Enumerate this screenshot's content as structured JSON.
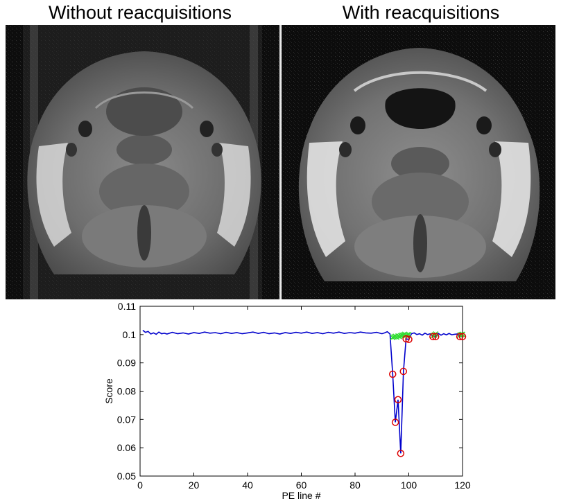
{
  "panels": {
    "left_title": "Without reacquisitions",
    "right_title": "With reacquisitions"
  },
  "chart_data": {
    "type": "line",
    "title": "",
    "xlabel": "PE line #",
    "ylabel": "Score",
    "xlim": [
      0,
      120
    ],
    "ylim": [
      0.05,
      0.11
    ],
    "xticks": [
      0,
      20,
      40,
      60,
      80,
      100,
      120
    ],
    "yticks": [
      0.05,
      0.06,
      0.07,
      0.08,
      0.09,
      0.1,
      0.11
    ],
    "ytick_labels": [
      "0.05",
      "0.06",
      "0.07",
      "0.08",
      "0.09",
      "0.1",
      "0.11"
    ],
    "grid": false,
    "series": [
      {
        "style": "line",
        "color": "#0000cc",
        "x": [
          1,
          2,
          3,
          4,
          5,
          6,
          7,
          8,
          9,
          10,
          12,
          14,
          16,
          18,
          20,
          22,
          24,
          26,
          28,
          30,
          32,
          34,
          36,
          38,
          40,
          42,
          44,
          46,
          48,
          50,
          52,
          54,
          56,
          58,
          60,
          62,
          64,
          66,
          68,
          70,
          72,
          74,
          76,
          78,
          80,
          82,
          84,
          86,
          88,
          90,
          91,
          92,
          93,
          94,
          95,
          96,
          97,
          98,
          99,
          100,
          101,
          102,
          103,
          104,
          105,
          106,
          107,
          108,
          109,
          110,
          111,
          112,
          113,
          114,
          115,
          116,
          117,
          118,
          119,
          120
        ],
        "y": [
          0.1015,
          0.1008,
          0.1011,
          0.1002,
          0.1006,
          0.1001,
          0.1009,
          0.1003,
          0.1005,
          0.1002,
          0.1008,
          0.1003,
          0.1006,
          0.1002,
          0.1007,
          0.1004,
          0.1009,
          0.1005,
          0.1007,
          0.1003,
          0.1008,
          0.1004,
          0.1007,
          0.1003,
          0.1006,
          0.1009,
          0.1004,
          0.1008,
          0.1003,
          0.1006,
          0.1002,
          0.1007,
          0.1004,
          0.1008,
          0.1005,
          0.1009,
          0.1004,
          0.1007,
          0.1003,
          0.1008,
          0.1005,
          0.1009,
          0.1004,
          0.1007,
          0.1005,
          0.1009,
          0.1006,
          0.1005,
          0.1008,
          0.1003,
          0.1006,
          0.101,
          0.1002,
          0.086,
          0.069,
          0.077,
          0.058,
          0.087,
          0.0985,
          0.0983,
          0.1003,
          0.1006,
          0.1,
          0.1003,
          0.0998,
          0.1005,
          0.1,
          0.1003,
          0.0993,
          0.0993,
          0.1004,
          0.0998,
          0.1003,
          0.0999,
          0.1004,
          0.0999,
          0.1001,
          0.1002,
          0.0993,
          0.0993
        ]
      },
      {
        "style": "markers",
        "marker": "x",
        "color": "#33dd33",
        "x": [
          94,
          94.5,
          95,
          95.5,
          96,
          96.5,
          97,
          97.5,
          98,
          98.5,
          99,
          99.5,
          100,
          109,
          109.5,
          110,
          119,
          119.5,
          120
        ],
        "y": [
          0.099,
          0.0992,
          0.0994,
          0.0991,
          0.0995,
          0.0993,
          0.0996,
          0.0998,
          0.0999,
          0.1001,
          0.0997,
          0.0999,
          0.1,
          0.0996,
          0.0999,
          0.1002,
          0.0998,
          0.1,
          0.1001
        ]
      },
      {
        "style": "markers",
        "marker": "o",
        "color": "#dd0000",
        "x": [
          94,
          95,
          96,
          97,
          98,
          99,
          100,
          109,
          110,
          119,
          120
        ],
        "y": [
          0.086,
          0.069,
          0.077,
          0.058,
          0.087,
          0.0985,
          0.0983,
          0.0993,
          0.0993,
          0.0993,
          0.0993
        ]
      }
    ]
  }
}
